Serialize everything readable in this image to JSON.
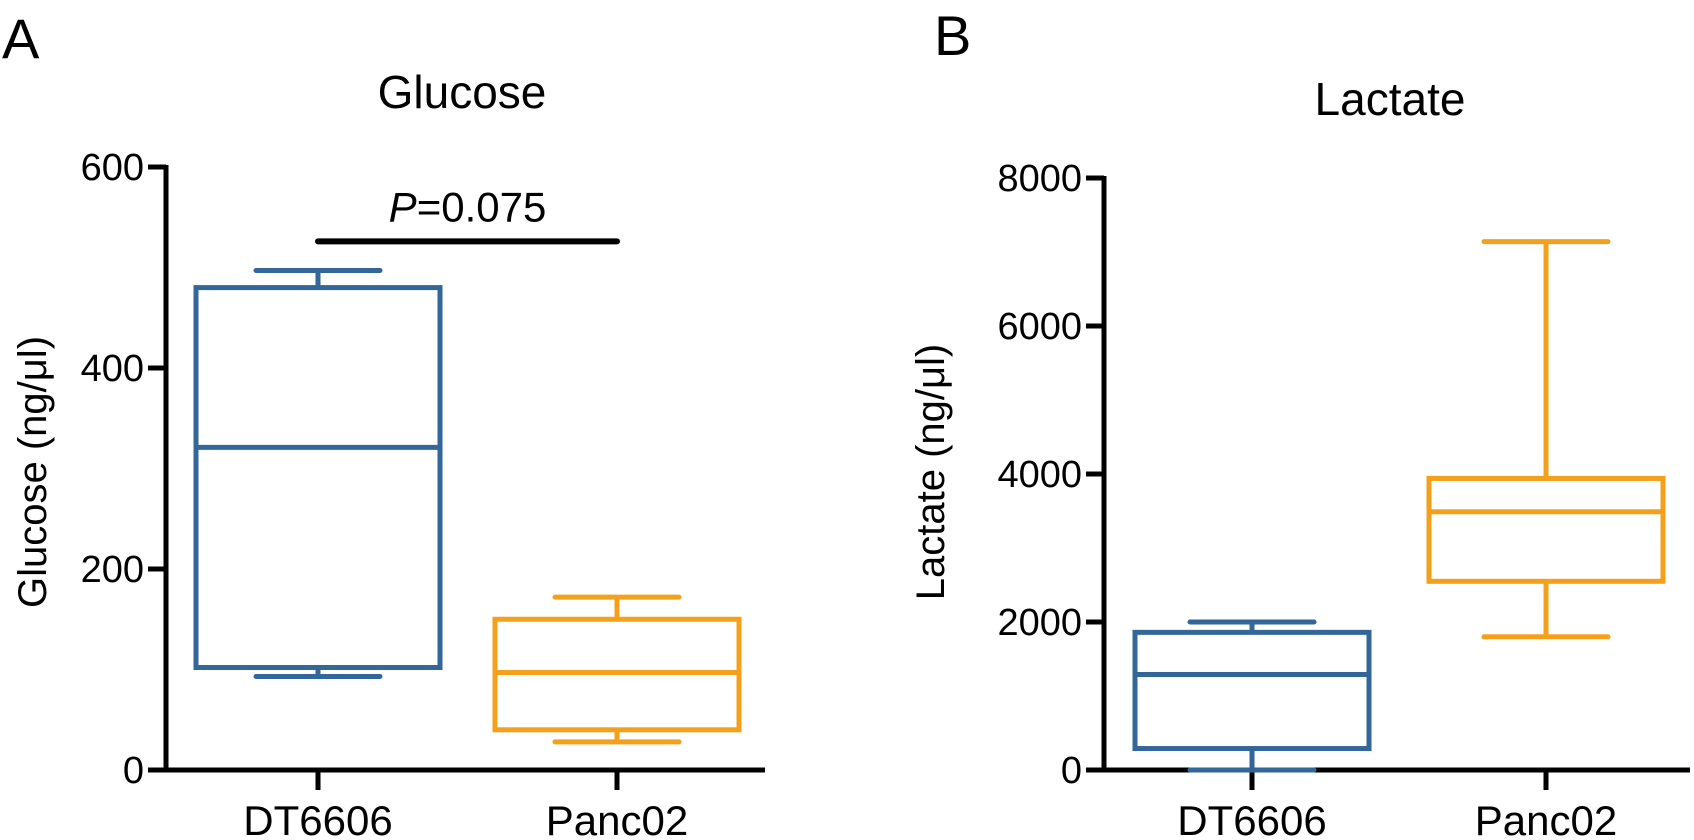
{
  "chart_data": [
    {
      "type": "box",
      "panel": "A",
      "title": "Glucose",
      "xlabel": "",
      "ylabel": "Glucose (ng/μl)",
      "categories": [
        "DT6606",
        "Panc02"
      ],
      "ylim": [
        0,
        600
      ],
      "yticks": [
        0,
        200,
        400,
        600
      ],
      "boxes": [
        {
          "name": "DT6606",
          "min": 93,
          "q1": 102,
          "median": 321,
          "q3": 480,
          "max": 497,
          "color": "#336699"
        },
        {
          "name": "Panc02",
          "min": 28,
          "q1": 40,
          "median": 97,
          "q3": 150,
          "max": 172,
          "color": "#F5A01A"
        }
      ],
      "annotation": {
        "prefix": "P",
        "text": "=0.075",
        "from": "DT6606",
        "to": "Panc02",
        "y": 526
      }
    },
    {
      "type": "box",
      "panel": "B",
      "title": "Lactate",
      "xlabel": "",
      "ylabel": "Lactate (ng/μl)",
      "categories": [
        "DT6606",
        "Panc02"
      ],
      "ylim": [
        0,
        8000
      ],
      "yticks": [
        0,
        2000,
        4000,
        6000,
        8000
      ],
      "boxes": [
        {
          "name": "DT6606",
          "min": 0,
          "q1": 290,
          "median": 1290,
          "q3": 1860,
          "max": 2000,
          "color": "#336699"
        },
        {
          "name": "Panc02",
          "min": 1800,
          "q1": 2550,
          "median": 3490,
          "q3": 3940,
          "max": 7140,
          "color": "#F5A01A"
        }
      ]
    }
  ]
}
